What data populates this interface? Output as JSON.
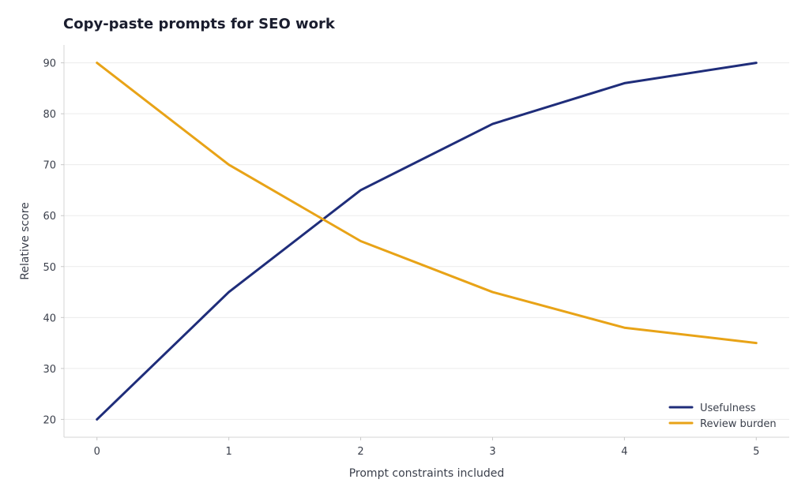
{
  "chart_data": {
    "type": "line",
    "title": "Copy-paste prompts for SEO work",
    "xlabel": "Prompt constraints included",
    "ylabel": "Relative score",
    "x": [
      0,
      1,
      2,
      3,
      4,
      5
    ],
    "xlim": [
      -0.25,
      5.25
    ],
    "ylim": [
      16.5,
      93.5
    ],
    "xticks": [
      0,
      1,
      2,
      3,
      4,
      5
    ],
    "yticks": [
      20,
      30,
      40,
      50,
      60,
      70,
      80,
      90
    ],
    "grid": "horizontal",
    "legend_position": "bottom-right",
    "series": [
      {
        "name": "Usefulness",
        "color": "#1f2d7a",
        "values": [
          20,
          45,
          65,
          78,
          86,
          90
        ]
      },
      {
        "name": "Review burden",
        "color": "#e8a317",
        "values": [
          90,
          70,
          55,
          45,
          38,
          35
        ]
      }
    ]
  }
}
